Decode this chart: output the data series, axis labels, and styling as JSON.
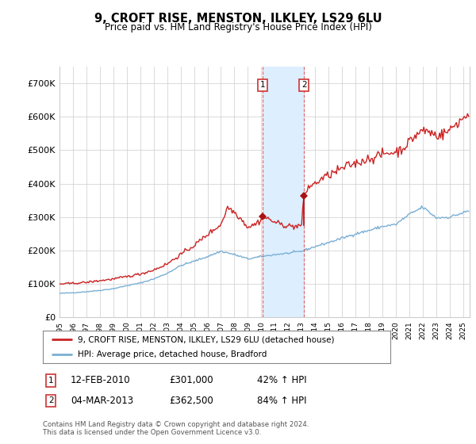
{
  "title": "9, CROFT RISE, MENSTON, ILKLEY, LS29 6LU",
  "subtitle": "Price paid vs. HM Land Registry's House Price Index (HPI)",
  "legend_line1": "9, CROFT RISE, MENSTON, ILKLEY, LS29 6LU (detached house)",
  "legend_line2": "HPI: Average price, detached house, Bradford",
  "footnote": "Contains HM Land Registry data © Crown copyright and database right 2024.\nThis data is licensed under the Open Government Licence v3.0.",
  "transaction1_date": "12-FEB-2010",
  "transaction1_price": "£301,000",
  "transaction1_hpi": "42% ↑ HPI",
  "transaction2_date": "04-MAR-2013",
  "transaction2_price": "£362,500",
  "transaction2_hpi": "84% ↑ HPI",
  "ylim": [
    0,
    750000
  ],
  "yticks": [
    0,
    100000,
    200000,
    300000,
    400000,
    500000,
    600000,
    700000
  ],
  "ytick_labels": [
    "£0",
    "£100K",
    "£200K",
    "£300K",
    "£400K",
    "£500K",
    "£600K",
    "£700K"
  ],
  "hpi_color": "#7bafd4",
  "property_color": "#cc2222",
  "sale_marker_color": "#aa1111",
  "shade_color": "#ddeeff",
  "grid_color": "#cccccc",
  "background_color": "#ffffff",
  "transaction1_x": 2010.11,
  "transaction2_x": 2013.17,
  "xlim_start": 1995.0,
  "xlim_end": 2025.5
}
